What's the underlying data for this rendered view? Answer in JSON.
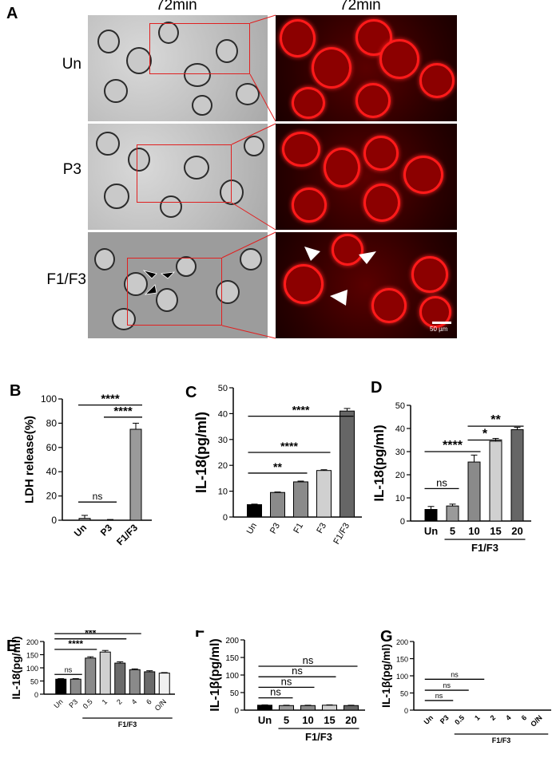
{
  "panel_A": {
    "letter": "A",
    "left_title": "72min",
    "right_title": "72min",
    "rows": [
      "Un",
      "P3",
      "F1/F3"
    ],
    "scale_bar": "50 µm",
    "colors": {
      "roi": "#e02020",
      "fluorescence": "#ff1a1a"
    }
  },
  "chart_data": [
    {
      "panel": "B",
      "type": "bar",
      "ylabel": "LDH release(%)",
      "ylim": [
        0,
        100
      ],
      "yticks": [
        0,
        20,
        40,
        60,
        80,
        100
      ],
      "categories": [
        "Un",
        "P3",
        "F1/F3"
      ],
      "values": [
        1.5,
        0.3,
        75
      ],
      "errors": [
        2.5,
        0.3,
        5
      ],
      "colors": [
        "#9a9a9a",
        "#9a9a9a",
        "#9a9a9a"
      ],
      "group_label": "",
      "significance": [
        {
          "from": 0,
          "to": 1,
          "y": 15,
          "label": "ns"
        },
        {
          "from": 0,
          "to": 2,
          "y": 95,
          "label": "****"
        },
        {
          "from": 1,
          "to": 2,
          "y": 85,
          "label": "****"
        }
      ]
    },
    {
      "panel": "C",
      "type": "bar",
      "ylabel": "IL-18(pg/ml)",
      "ylim": [
        0,
        50
      ],
      "yticks": [
        0,
        10,
        20,
        30,
        40,
        50
      ],
      "categories": [
        "Un",
        "P3",
        "F1",
        "F3",
        "F1/F3"
      ],
      "values": [
        4.8,
        9.5,
        13.6,
        18,
        41
      ],
      "errors": [
        0.2,
        0.2,
        0.3,
        0.3,
        1
      ],
      "colors": [
        "#000000",
        "#8a8a8a",
        "#8a8a8a",
        "#d0d0d0",
        "#666666"
      ],
      "group_label": "",
      "significance": [
        {
          "from": 0,
          "to": 2,
          "y": 17,
          "label": "**"
        },
        {
          "from": 0,
          "to": 3,
          "y": 25,
          "label": "****"
        },
        {
          "from": 0,
          "to": 4,
          "y": 39,
          "label": "****"
        }
      ]
    },
    {
      "panel": "D",
      "type": "bar",
      "ylabel": "IL-18(pg/ml)",
      "ylim": [
        0,
        50
      ],
      "yticks": [
        0,
        10,
        20,
        30,
        40,
        50
      ],
      "categories": [
        "Un",
        "5",
        "10",
        "15",
        "20"
      ],
      "values": [
        5,
        6.5,
        25.5,
        34.5,
        39.5
      ],
      "errors": [
        1.3,
        0.8,
        3,
        1.2,
        1
      ],
      "colors": [
        "#000000",
        "#9a9a9a",
        "#8a8a8a",
        "#d0d0d0",
        "#666666"
      ],
      "group_label": "F1/F3",
      "significance": [
        {
          "from": 0,
          "to": 1,
          "y": 14,
          "label": "ns"
        },
        {
          "from": 0,
          "to": 2,
          "y": 30,
          "label": "****"
        },
        {
          "from": 2,
          "to": 3,
          "y": 35,
          "label": "*"
        },
        {
          "from": 2,
          "to": 4,
          "y": 41,
          "label": "**"
        }
      ]
    },
    {
      "panel": "E",
      "type": "bar",
      "ylabel": "IL-18(pg/ml)",
      "ylim": [
        0,
        200
      ],
      "yticks": [
        0,
        50,
        100,
        150,
        200
      ],
      "categories": [
        "Un",
        "P3",
        "0.5",
        "1",
        "2",
        "4",
        "6",
        "O/N"
      ],
      "values": [
        57,
        57,
        137,
        160,
        118,
        93,
        85,
        80
      ],
      "errors": [
        2,
        2,
        5,
        6,
        5,
        3,
        4,
        2
      ],
      "colors": [
        "#000000",
        "#8a8a8a",
        "#8a8a8a",
        "#d0d0d0",
        "#6a6a6a",
        "#8a8a8a",
        "#6a6a6a",
        "#f0f0f0"
      ],
      "group_label": "F1/F3",
      "group_range": [
        2,
        7
      ],
      "significance": [
        {
          "from": 0,
          "to": 1,
          "y": 75,
          "label": "ns"
        },
        {
          "from": 0,
          "to": 2,
          "y": 170,
          "label": "****"
        },
        {
          "from": 0,
          "to": 4,
          "y": 210,
          "label": "***"
        },
        {
          "from": 0,
          "to": 5,
          "y": 230,
          "label": "**"
        },
        {
          "from": 0,
          "to": 6,
          "y": 250,
          "label": "*"
        }
      ]
    },
    {
      "panel": "F",
      "type": "bar",
      "ylabel": "IL-1β(pg/ml)",
      "ylim": [
        0,
        200
      ],
      "yticks": [
        0,
        50,
        100,
        150,
        200
      ],
      "categories": [
        "Un",
        "5",
        "10",
        "15",
        "20"
      ],
      "values": [
        14,
        13,
        13,
        14,
        13
      ],
      "errors": [
        1,
        1,
        1,
        1,
        1
      ],
      "colors": [
        "#000000",
        "#9a9a9a",
        "#8a8a8a",
        "#d0d0d0",
        "#666666"
      ],
      "group_label": "F1/F3",
      "significance": [
        {
          "from": 0,
          "to": 1,
          "y": 35,
          "label": "ns"
        },
        {
          "from": 0,
          "to": 2,
          "y": 65,
          "label": "ns"
        },
        {
          "from": 0,
          "to": 3,
          "y": 95,
          "label": "ns"
        },
        {
          "from": 0,
          "to": 4,
          "y": 125,
          "label": "ns"
        }
      ]
    },
    {
      "panel": "G",
      "type": "bar",
      "ylabel": "IL-1β(pg/ml)",
      "ylim": [
        0,
        200
      ],
      "yticks": [
        0,
        50,
        100,
        150,
        200
      ],
      "categories": [
        "Un",
        "P3",
        "0.5",
        "1",
        "2",
        "4",
        "6",
        "O/N"
      ],
      "values": [
        0,
        0,
        0,
        0,
        0,
        0,
        0,
        0
      ],
      "errors": [
        0,
        0,
        0,
        0,
        0,
        0,
        0,
        0
      ],
      "colors": [
        "#000000",
        "#8a8a8a",
        "#8a8a8a",
        "#d0d0d0",
        "#6a6a6a",
        "#8a8a8a",
        "#6a6a6a",
        "#f0f0f0"
      ],
      "group_label": "F1/F3",
      "group_range": [
        2,
        7
      ],
      "significance": [
        {
          "from": 0,
          "to": 1,
          "y": 28,
          "label": "ns"
        },
        {
          "from": 0,
          "to": 2,
          "y": 58,
          "label": "ns"
        },
        {
          "from": 0,
          "to": 3,
          "y": 90,
          "label": "ns"
        }
      ]
    }
  ]
}
